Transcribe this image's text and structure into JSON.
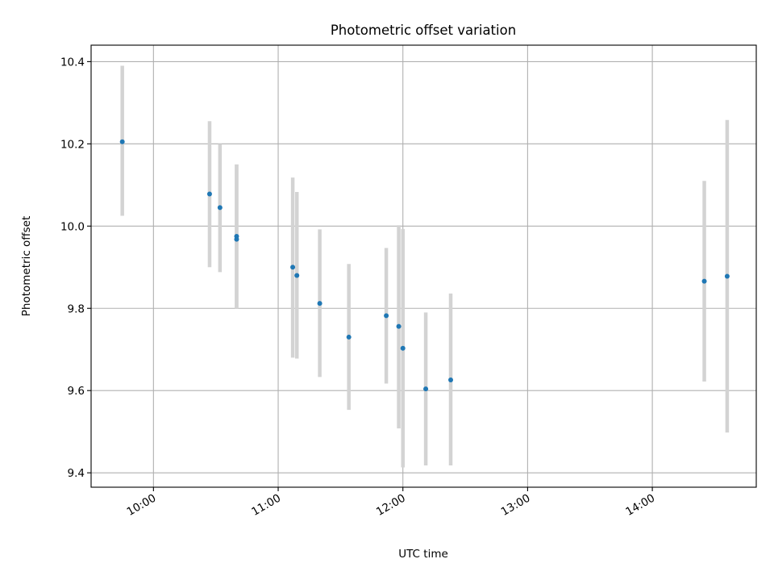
{
  "chart_data": {
    "type": "scatter",
    "title": "Photometric offset variation",
    "xlabel": "UTC time",
    "ylabel": "Photometric offset",
    "x_ticks": [
      "10:00",
      "11:00",
      "12:00",
      "13:00",
      "14:00"
    ],
    "y_ticks": [
      "9.4",
      "9.6",
      "9.8",
      "10.0",
      "10.2",
      "10.4"
    ],
    "xlim": [
      "09:30",
      "14:50"
    ],
    "ylim": [
      9.365,
      10.44
    ],
    "grid": true,
    "series": [
      {
        "marker_color": "#1f77b4",
        "errorbar_color": "#d3d3d3",
        "points": [
          {
            "x": "09:45",
            "y": 10.205,
            "yerr_low": 10.025,
            "yerr_high": 10.39
          },
          {
            "x": "10:27",
            "y": 10.078,
            "yerr_low": 9.9,
            "yerr_high": 10.255
          },
          {
            "x": "10:32",
            "y": 10.045,
            "yerr_low": 9.888,
            "yerr_high": 10.2
          },
          {
            "x": "10:40",
            "y": 9.975,
            "yerr_low": 9.8,
            "yerr_high": 10.15
          },
          {
            "x": "10:40",
            "y": 9.968,
            "yerr_low": 9.8,
            "yerr_high": 10.15
          },
          {
            "x": "11:07",
            "y": 9.9,
            "yerr_low": 9.68,
            "yerr_high": 10.118
          },
          {
            "x": "11:09",
            "y": 9.88,
            "yerr_low": 9.678,
            "yerr_high": 10.083
          },
          {
            "x": "11:20",
            "y": 9.812,
            "yerr_low": 9.633,
            "yerr_high": 9.992
          },
          {
            "x": "11:34",
            "y": 9.73,
            "yerr_low": 9.553,
            "yerr_high": 9.908
          },
          {
            "x": "11:52",
            "y": 9.782,
            "yerr_low": 9.617,
            "yerr_high": 9.947
          },
          {
            "x": "11:58",
            "y": 9.756,
            "yerr_low": 9.508,
            "yerr_high": 10.002
          },
          {
            "x": "12:00",
            "y": 9.703,
            "yerr_low": 9.413,
            "yerr_high": 9.993
          },
          {
            "x": "12:11",
            "y": 9.604,
            "yerr_low": 9.418,
            "yerr_high": 9.79
          },
          {
            "x": "12:23",
            "y": 9.626,
            "yerr_low": 9.418,
            "yerr_high": 9.836
          },
          {
            "x": "14:25",
            "y": 9.866,
            "yerr_low": 9.622,
            "yerr_high": 10.11
          },
          {
            "x": "14:36",
            "y": 9.878,
            "yerr_low": 9.498,
            "yerr_high": 10.258
          }
        ]
      }
    ]
  }
}
